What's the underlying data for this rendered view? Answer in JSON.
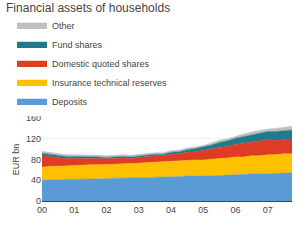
{
  "chart_data": {
    "type": "area",
    "title": "Financial assets of households",
    "ylabel": "EUR bn",
    "stacked": true,
    "grid": true,
    "legend": "top",
    "x": [
      2000,
      2000.25,
      2000.5,
      2000.75,
      2001,
      2001.25,
      2001.5,
      2001.75,
      2002,
      2002.25,
      2002.5,
      2002.75,
      2003,
      2003.25,
      2003.5,
      2003.75,
      2004,
      2004.25,
      2004.5,
      2004.75,
      2005,
      2005.25,
      2005.5,
      2005.75,
      2006,
      2006.25,
      2006.5,
      2006.75,
      2007,
      2007.25,
      2007.5,
      2007.75
    ],
    "xlim": [
      2000,
      2007.75
    ],
    "xticks": [
      {
        "value": 2000,
        "label": "00"
      },
      {
        "value": 2001,
        "label": "01"
      },
      {
        "value": 2002,
        "label": "02"
      },
      {
        "value": 2003,
        "label": "03"
      },
      {
        "value": 2004,
        "label": "04"
      },
      {
        "value": 2005,
        "label": "05"
      },
      {
        "value": 2006,
        "label": "06"
      },
      {
        "value": 2007,
        "label": "07"
      }
    ],
    "ylim": [
      0,
      160
    ],
    "yticks": [
      0,
      40,
      80,
      120,
      160
    ],
    "series": [
      {
        "name": "Deposits",
        "color": "#5B9BD5",
        "values": [
          40,
          41,
          41,
          42,
          42,
          42,
          43,
          43,
          43,
          44,
          44,
          44,
          45,
          45,
          46,
          46,
          47,
          47,
          48,
          48,
          48,
          49,
          49,
          50,
          51,
          51,
          52,
          52,
          53,
          53,
          54,
          54
        ]
      },
      {
        "name": "Insurance technical reserves",
        "color": "#FFC000",
        "values": [
          25,
          26,
          26,
          26,
          26,
          27,
          27,
          27,
          27,
          27,
          28,
          28,
          28,
          29,
          29,
          29,
          30,
          30,
          31,
          31,
          31,
          32,
          33,
          33,
          34,
          34,
          35,
          35,
          36,
          36,
          37,
          37
        ]
      },
      {
        "name": "Domestic quoted shares",
        "color": "#E03B24",
        "values": [
          22,
          18,
          16,
          14,
          14,
          13,
          12,
          12,
          11,
          11,
          11,
          10,
          11,
          12,
          12,
          12,
          13,
          14,
          15,
          16,
          18,
          19,
          21,
          22,
          24,
          26,
          27,
          29,
          29,
          28,
          27,
          26
        ]
      },
      {
        "name": "Fund shares",
        "color": "#1F7A8C",
        "values": [
          5,
          5,
          5,
          4,
          4,
          4,
          3,
          3,
          3,
          3,
          3,
          3,
          3,
          3,
          3,
          3,
          4,
          4,
          5,
          6,
          7,
          8,
          10,
          11,
          12,
          13,
          14,
          15,
          16,
          17,
          18,
          20
        ]
      },
      {
        "name": "Other",
        "color": "#BFBFBF",
        "values": [
          4,
          4,
          4,
          3,
          3,
          3,
          3,
          3,
          3,
          3,
          3,
          3,
          3,
          3,
          3,
          3,
          3,
          3,
          3,
          3,
          3,
          4,
          4,
          4,
          4,
          5,
          5,
          5,
          5,
          6,
          6,
          7
        ]
      }
    ]
  }
}
